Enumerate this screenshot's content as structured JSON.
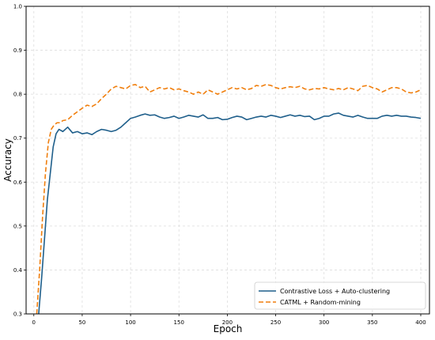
{
  "chart_data": {
    "type": "line",
    "title": "",
    "xlabel": "Epoch",
    "ylabel": "Accuracy",
    "xlim": [
      -8,
      409
    ],
    "ylim": [
      0.3,
      1.0
    ],
    "xticks": [
      "0",
      "50",
      "100",
      "150",
      "200",
      "250",
      "300",
      "350",
      "400"
    ],
    "yticks": [
      "0.3",
      "0.4",
      "0.5",
      "0.6",
      "0.7",
      "0.8",
      "0.9",
      "1.0"
    ],
    "grid": true,
    "legend_position": "lower-right",
    "series": [
      {
        "name": "Contrastive Loss + Auto-clustering",
        "color": "#1f5f8b",
        "style": "solid",
        "x": [
          5,
          8,
          11,
          14,
          17,
          20,
          23,
          26,
          30,
          35,
          40,
          45,
          50,
          55,
          60,
          65,
          70,
          75,
          80,
          85,
          90,
          95,
          100,
          105,
          110,
          115,
          120,
          125,
          130,
          135,
          140,
          145,
          150,
          155,
          160,
          165,
          170,
          175,
          180,
          185,
          190,
          195,
          200,
          205,
          210,
          215,
          220,
          225,
          230,
          235,
          240,
          245,
          250,
          255,
          260,
          265,
          270,
          275,
          280,
          285,
          290,
          295,
          300,
          305,
          310,
          315,
          320,
          325,
          330,
          335,
          340,
          345,
          350,
          355,
          360,
          365,
          370,
          375,
          380,
          385,
          390,
          395,
          400
        ],
        "y": [
          0.3,
          0.38,
          0.47,
          0.56,
          0.62,
          0.68,
          0.71,
          0.72,
          0.715,
          0.725,
          0.712,
          0.715,
          0.71,
          0.712,
          0.708,
          0.715,
          0.72,
          0.718,
          0.715,
          0.718,
          0.725,
          0.735,
          0.745,
          0.748,
          0.752,
          0.755,
          0.752,
          0.753,
          0.748,
          0.745,
          0.747,
          0.75,
          0.745,
          0.748,
          0.752,
          0.75,
          0.748,
          0.753,
          0.745,
          0.745,
          0.747,
          0.742,
          0.743,
          0.747,
          0.75,
          0.748,
          0.742,
          0.745,
          0.748,
          0.75,
          0.748,
          0.752,
          0.75,
          0.747,
          0.75,
          0.753,
          0.75,
          0.752,
          0.749,
          0.75,
          0.742,
          0.745,
          0.75,
          0.75,
          0.755,
          0.757,
          0.752,
          0.75,
          0.748,
          0.752,
          0.748,
          0.745,
          0.745,
          0.745,
          0.75,
          0.752,
          0.75,
          0.752,
          0.75,
          0.75,
          0.748,
          0.747,
          0.745
        ]
      },
      {
        "name": "CATML + Random-mining",
        "color": "#f07f0e",
        "style": "dashed",
        "x": [
          3,
          6,
          9,
          12,
          15,
          18,
          21,
          24,
          27,
          30,
          35,
          40,
          45,
          50,
          55,
          60,
          65,
          70,
          75,
          80,
          85,
          90,
          95,
          100,
          105,
          110,
          115,
          120,
          125,
          130,
          135,
          140,
          145,
          150,
          155,
          160,
          165,
          170,
          175,
          180,
          185,
          190,
          195,
          200,
          205,
          210,
          215,
          220,
          225,
          230,
          235,
          240,
          245,
          250,
          255,
          260,
          265,
          270,
          275,
          280,
          285,
          290,
          295,
          300,
          305,
          310,
          315,
          320,
          325,
          330,
          335,
          340,
          345,
          350,
          355,
          360,
          365,
          370,
          375,
          380,
          385,
          390,
          395,
          400
        ],
        "y": [
          0.3,
          0.4,
          0.52,
          0.62,
          0.69,
          0.72,
          0.73,
          0.735,
          0.735,
          0.74,
          0.742,
          0.752,
          0.76,
          0.768,
          0.775,
          0.772,
          0.778,
          0.79,
          0.8,
          0.812,
          0.818,
          0.815,
          0.812,
          0.82,
          0.822,
          0.815,
          0.818,
          0.805,
          0.81,
          0.815,
          0.812,
          0.815,
          0.81,
          0.812,
          0.808,
          0.805,
          0.8,
          0.805,
          0.8,
          0.81,
          0.805,
          0.8,
          0.805,
          0.81,
          0.815,
          0.812,
          0.815,
          0.81,
          0.813,
          0.82,
          0.818,
          0.822,
          0.82,
          0.815,
          0.812,
          0.815,
          0.817,
          0.815,
          0.818,
          0.812,
          0.81,
          0.813,
          0.812,
          0.815,
          0.812,
          0.81,
          0.813,
          0.81,
          0.815,
          0.812,
          0.808,
          0.818,
          0.82,
          0.815,
          0.812,
          0.805,
          0.81,
          0.815,
          0.815,
          0.812,
          0.805,
          0.803,
          0.805,
          0.81
        ]
      }
    ]
  }
}
